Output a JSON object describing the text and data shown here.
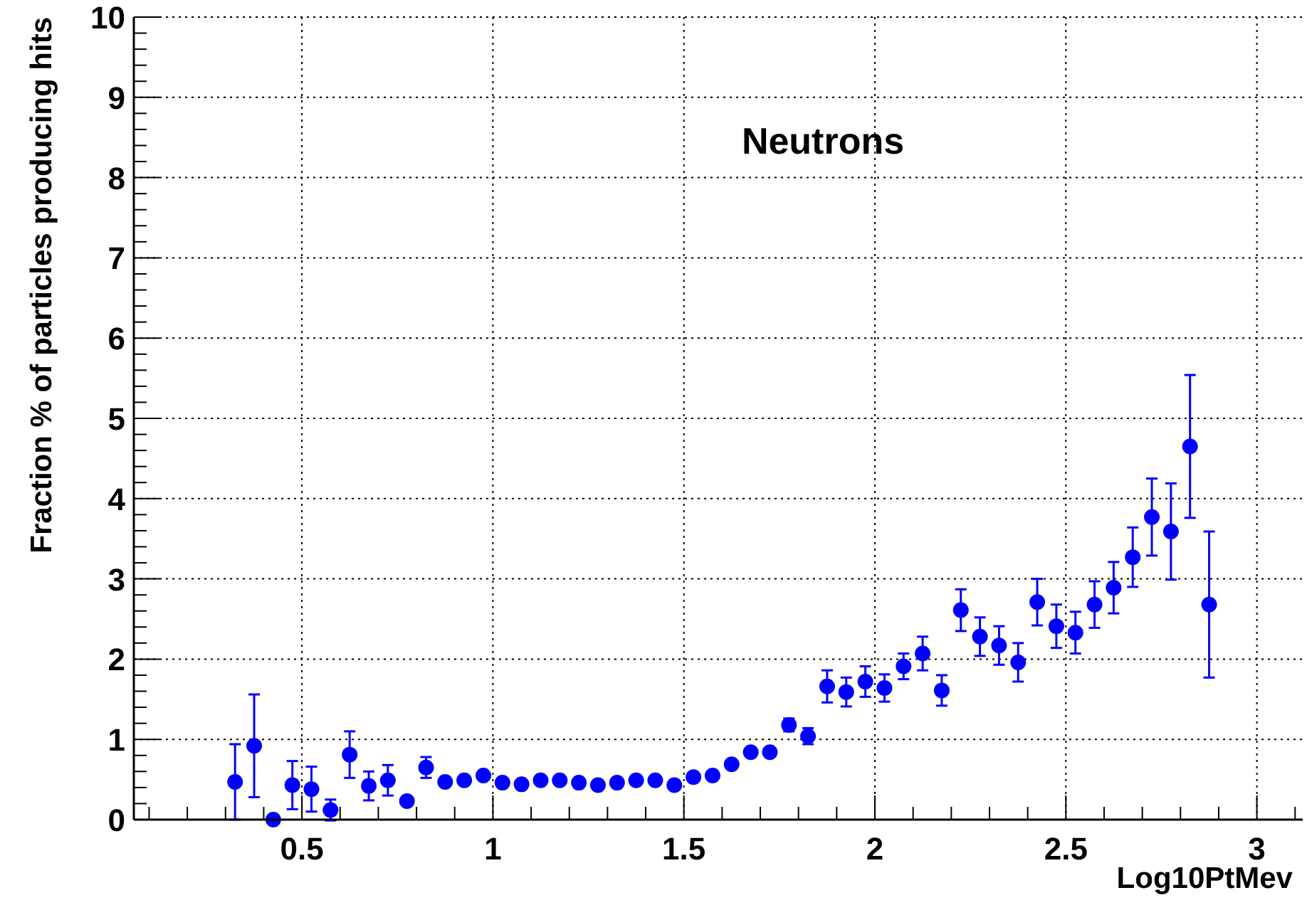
{
  "chart_data": {
    "type": "scatter",
    "title": "Neutrons",
    "xlabel": "Log10PtMev",
    "ylabel": "Fraction % of particles producing hits",
    "xlim": [
      0.06,
      3.12
    ],
    "ylim": [
      0,
      10
    ],
    "xticks": [
      {
        "value": 0.1,
        "label": null
      },
      {
        "value": 0.2,
        "label": null
      },
      {
        "value": 0.3,
        "label": null
      },
      {
        "value": 0.4,
        "label": null
      },
      0.5,
      {
        "value": 0.6,
        "label": null
      },
      {
        "value": 0.7,
        "label": null
      },
      {
        "value": 0.8,
        "label": null
      },
      {
        "value": 0.9,
        "label": null
      },
      1,
      {
        "value": 1.1,
        "label": null
      },
      {
        "value": 1.2,
        "label": null
      },
      {
        "value": 1.3,
        "label": null
      },
      {
        "value": 1.4,
        "label": null
      },
      1.5,
      {
        "value": 1.6,
        "label": null
      },
      {
        "value": 1.7,
        "label": null
      },
      {
        "value": 1.8,
        "label": null
      },
      {
        "value": 1.9,
        "label": null
      },
      2,
      {
        "value": 2.1,
        "label": null
      },
      {
        "value": 2.2,
        "label": null
      },
      {
        "value": 2.3,
        "label": null
      },
      {
        "value": 2.4,
        "label": null
      },
      2.5,
      {
        "value": 2.6,
        "label": null
      },
      {
        "value": 2.7,
        "label": null
      },
      {
        "value": 2.8,
        "label": null
      },
      {
        "value": 2.9,
        "label": null
      },
      3,
      {
        "value": 3.1,
        "label": null
      }
    ],
    "yticks": [
      0,
      {
        "value": 0.2,
        "label": null
      },
      {
        "value": 0.4,
        "label": null
      },
      {
        "value": 0.6,
        "label": null
      },
      {
        "value": 0.8,
        "label": null
      },
      1,
      {
        "value": 1.2,
        "label": null
      },
      {
        "value": 1.4,
        "label": null
      },
      {
        "value": 1.6,
        "label": null
      },
      {
        "value": 1.8,
        "label": null
      },
      2,
      {
        "value": 2.2,
        "label": null
      },
      {
        "value": 2.4,
        "label": null
      },
      {
        "value": 2.6,
        "label": null
      },
      {
        "value": 2.8,
        "label": null
      },
      3,
      {
        "value": 3.2,
        "label": null
      },
      {
        "value": 3.4,
        "label": null
      },
      {
        "value": 3.6,
        "label": null
      },
      {
        "value": 3.8,
        "label": null
      },
      4,
      {
        "value": 4.2,
        "label": null
      },
      {
        "value": 4.4,
        "label": null
      },
      {
        "value": 4.6,
        "label": null
      },
      {
        "value": 4.8,
        "label": null
      },
      5,
      {
        "value": 5.2,
        "label": null
      },
      {
        "value": 5.4,
        "label": null
      },
      {
        "value": 5.6,
        "label": null
      },
      {
        "value": 5.8,
        "label": null
      },
      6,
      {
        "value": 6.2,
        "label": null
      },
      {
        "value": 6.4,
        "label": null
      },
      {
        "value": 6.6,
        "label": null
      },
      {
        "value": 6.8,
        "label": null
      },
      7,
      {
        "value": 7.2,
        "label": null
      },
      {
        "value": 7.4,
        "label": null
      },
      {
        "value": 7.6,
        "label": null
      },
      {
        "value": 7.8,
        "label": null
      },
      8,
      {
        "value": 8.2,
        "label": null
      },
      {
        "value": 8.4,
        "label": null
      },
      {
        "value": 8.6,
        "label": null
      },
      {
        "value": 8.8,
        "label": null
      },
      9,
      {
        "value": 9.2,
        "label": null
      },
      {
        "value": 9.4,
        "label": null
      },
      {
        "value": 9.6,
        "label": null
      },
      {
        "value": 9.8,
        "label": null
      },
      10
    ],
    "grid": true,
    "marker": "circle",
    "series": [
      {
        "color": "#0000ff",
        "x": [
          0.325,
          0.375,
          0.425,
          0.475,
          0.525,
          0.575,
          0.625,
          0.675,
          0.725,
          0.775,
          0.825,
          0.875,
          0.925,
          0.975,
          1.025,
          1.075,
          1.125,
          1.175,
          1.225,
          1.275,
          1.325,
          1.375,
          1.425,
          1.475,
          1.525,
          1.575,
          1.625,
          1.675,
          1.725,
          1.775,
          1.825,
          1.875,
          1.925,
          1.975,
          2.025,
          2.075,
          2.125,
          2.175,
          2.225,
          2.275,
          2.325,
          2.375,
          2.425,
          2.475,
          2.525,
          2.575,
          2.625,
          2.675,
          2.725,
          2.775,
          2.825,
          2.875
        ],
        "values": [
          0.47,
          0.92,
          0.0,
          0.43,
          0.38,
          0.12,
          0.81,
          0.42,
          0.49,
          0.23,
          0.65,
          0.47,
          0.49,
          0.55,
          0.46,
          0.44,
          0.49,
          0.49,
          0.46,
          0.43,
          0.46,
          0.49,
          0.49,
          0.43,
          0.53,
          0.55,
          0.69,
          0.84,
          0.84,
          1.18,
          1.04,
          1.66,
          1.59,
          1.72,
          1.64,
          1.91,
          2.07,
          1.61,
          2.61,
          2.28,
          2.17,
          1.96,
          2.71,
          2.41,
          2.33,
          2.68,
          2.89,
          3.27,
          3.77,
          3.59,
          4.65,
          2.68
        ],
        "errors": [
          0.47,
          0.64,
          null,
          0.3,
          0.28,
          0.13,
          0.29,
          0.18,
          0.19,
          null,
          0.13,
          null,
          null,
          null,
          null,
          null,
          null,
          null,
          null,
          null,
          null,
          null,
          null,
          null,
          null,
          null,
          null,
          null,
          null,
          0.08,
          0.1,
          0.2,
          0.18,
          0.19,
          0.17,
          0.16,
          0.21,
          0.19,
          0.26,
          0.24,
          0.24,
          0.24,
          0.29,
          0.27,
          0.26,
          0.29,
          0.32,
          0.37,
          0.48,
          0.6,
          0.89,
          0.91
        ]
      }
    ]
  }
}
